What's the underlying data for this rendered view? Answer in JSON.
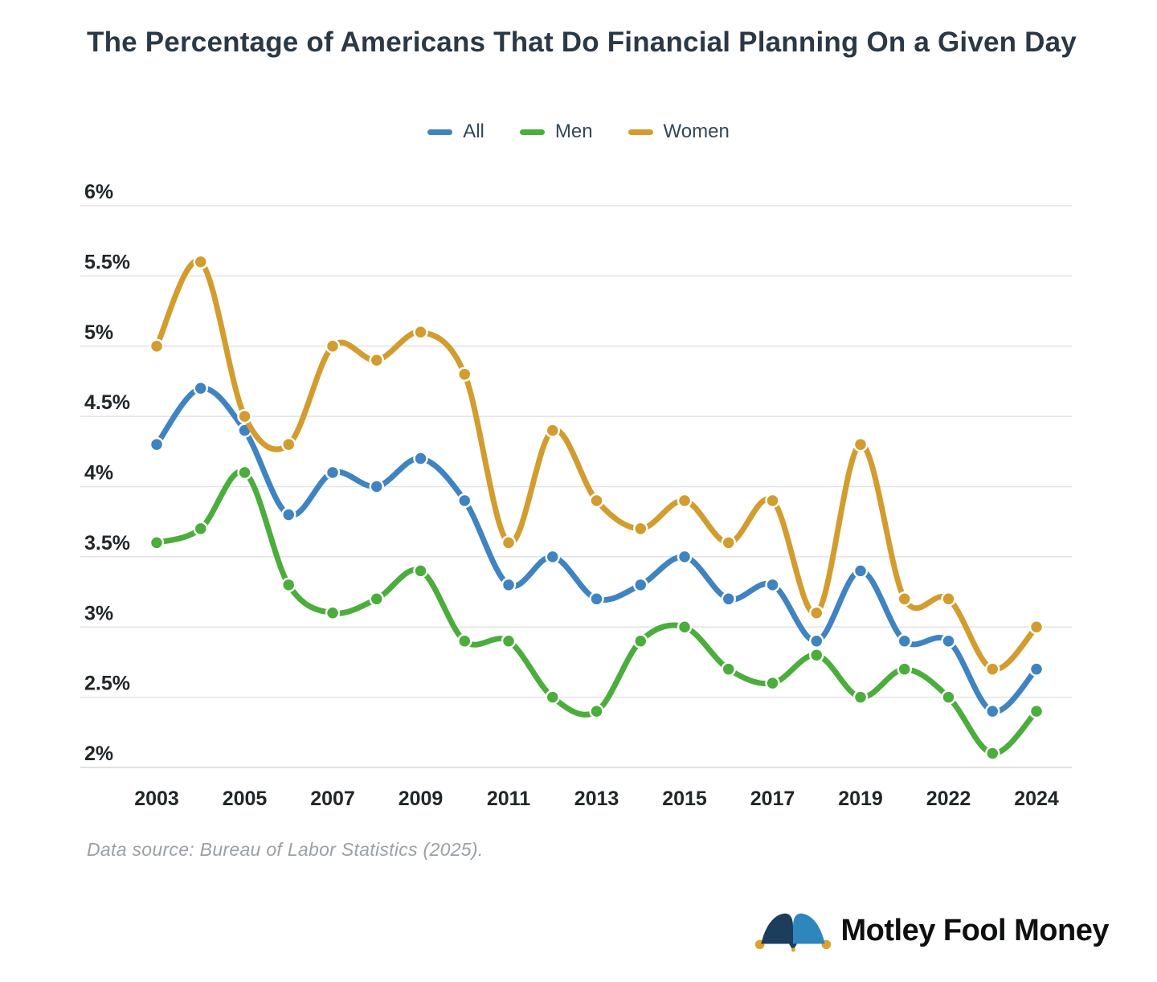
{
  "title": "The Percentage of Americans That Do Financial Planning On a Given Day",
  "footer": {
    "text": "Data source: Bureau of Labor Statistics (2025)."
  },
  "logo": {
    "text": "Motley Fool Money",
    "icon": "jester-hat-icon",
    "hat_dark": "#1d3d5d",
    "hat_light": "#2d87bd",
    "bell_gold": "#d9a42e"
  },
  "chart_data": {
    "type": "line",
    "title": "The Percentage of Americans That Do Financial Planning On a Given Day",
    "x": [
      2003,
      2004,
      2005,
      2006,
      2007,
      2008,
      2009,
      2010,
      2011,
      2012,
      2013,
      2014,
      2015,
      2016,
      2017,
      2018,
      2019,
      2021,
      2022,
      2023,
      2024
    ],
    "series": [
      {
        "name": "All",
        "color": "#3f83c1",
        "values": [
          4.3,
          4.7,
          4.4,
          3.8,
          4.1,
          4.0,
          4.2,
          3.9,
          3.3,
          3.5,
          3.2,
          3.3,
          3.5,
          3.2,
          3.3,
          2.9,
          3.4,
          2.9,
          2.9,
          2.4,
          2.7
        ]
      },
      {
        "name": "Men",
        "color": "#4bad3b",
        "values": [
          3.6,
          3.7,
          4.1,
          3.3,
          3.1,
          3.2,
          3.4,
          2.9,
          2.9,
          2.5,
          2.4,
          2.9,
          3.0,
          2.7,
          2.6,
          2.8,
          2.5,
          2.7,
          2.5,
          2.1,
          2.4
        ]
      },
      {
        "name": "Women",
        "color": "#d29c2e",
        "values": [
          5.0,
          5.6,
          4.5,
          4.3,
          5.0,
          4.9,
          5.1,
          4.8,
          3.6,
          4.4,
          3.9,
          3.7,
          3.9,
          3.6,
          3.9,
          3.1,
          4.3,
          3.2,
          3.2,
          2.7,
          3.0
        ]
      }
    ],
    "y_ticks": [
      {
        "value": 6,
        "label": "6%"
      },
      {
        "value": 5.5,
        "label": "5.5%"
      },
      {
        "value": 5,
        "label": "5%"
      },
      {
        "value": 4.5,
        "label": "4.5%"
      },
      {
        "value": 4,
        "label": "4%"
      },
      {
        "value": 3.5,
        "label": "3.5%"
      },
      {
        "value": 3,
        "label": "3%"
      },
      {
        "value": 2.5,
        "label": "2.5%"
      },
      {
        "value": 2,
        "label": "2%"
      }
    ],
    "x_tick_labels": [
      "2003",
      "2005",
      "2007",
      "2009",
      "2011",
      "2013",
      "2015",
      "2017",
      "2019",
      "2022",
      "2024"
    ],
    "ylim": [
      2,
      6
    ],
    "xlabel": "",
    "ylabel": "",
    "grid": true,
    "legend_position": "top",
    "tick_color": "#212629",
    "grid_color": "#e3e3e3",
    "baseline_color": "#d8d8d8"
  }
}
